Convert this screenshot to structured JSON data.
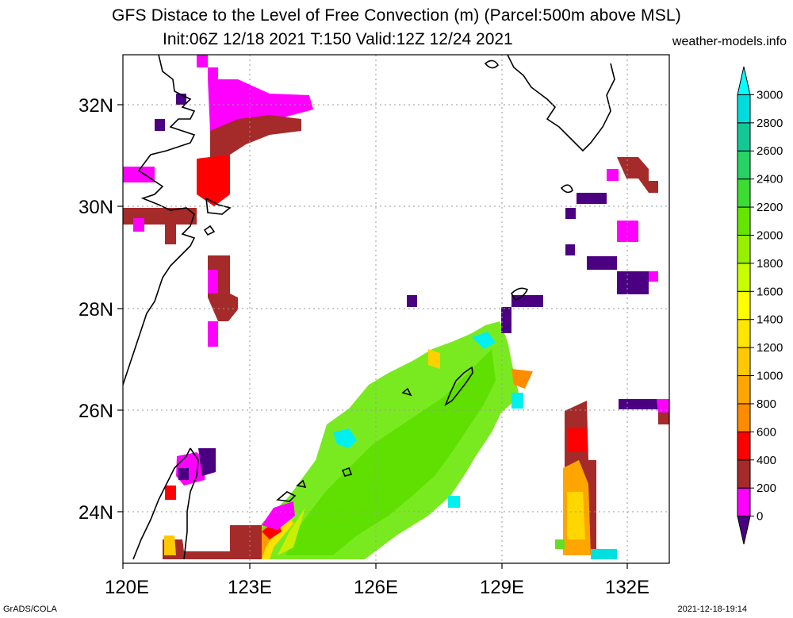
{
  "title_line1": "GFS Distace to the Level of Free Convection (m) (Parcel:500m above MSL)",
  "title_line2": "Init:06Z 12/18 2021 T:150 Valid:12Z 12/24 2021",
  "website": "weather-models.info",
  "footer_left": "GrADS/COLA",
  "footer_right": "2021-12-18-19:14",
  "chart_data": {
    "type": "heatmap",
    "variable": "Distance to the Level of Free Convection",
    "units": "m",
    "lon_range": [
      120,
      133
    ],
    "lat_range": [
      23,
      33
    ],
    "x_ticks": [
      "120E",
      "123E",
      "126E",
      "129E",
      "132E"
    ],
    "y_ticks": [
      "24N",
      "26N",
      "28N",
      "30N",
      "32N"
    ],
    "grid": true,
    "colorbar": {
      "levels": [
        "0",
        "200",
        "400",
        "600",
        "800",
        "1000",
        "1200",
        "1400",
        "1600",
        "1800",
        "2000",
        "2200",
        "2400",
        "2600",
        "2800",
        "3000"
      ],
      "colors": [
        "#4b0082",
        "#ff00ff",
        "#a52a2a",
        "#ff0000",
        "#ff8c00",
        "#ffa500",
        "#ffc800",
        "#ffe600",
        "#ffff00",
        "#c8ff00",
        "#96f000",
        "#64e600",
        "#3cdc32",
        "#28d264",
        "#14c896",
        "#00dcdc",
        "#00ffff"
      ],
      "extends": "both"
    }
  }
}
